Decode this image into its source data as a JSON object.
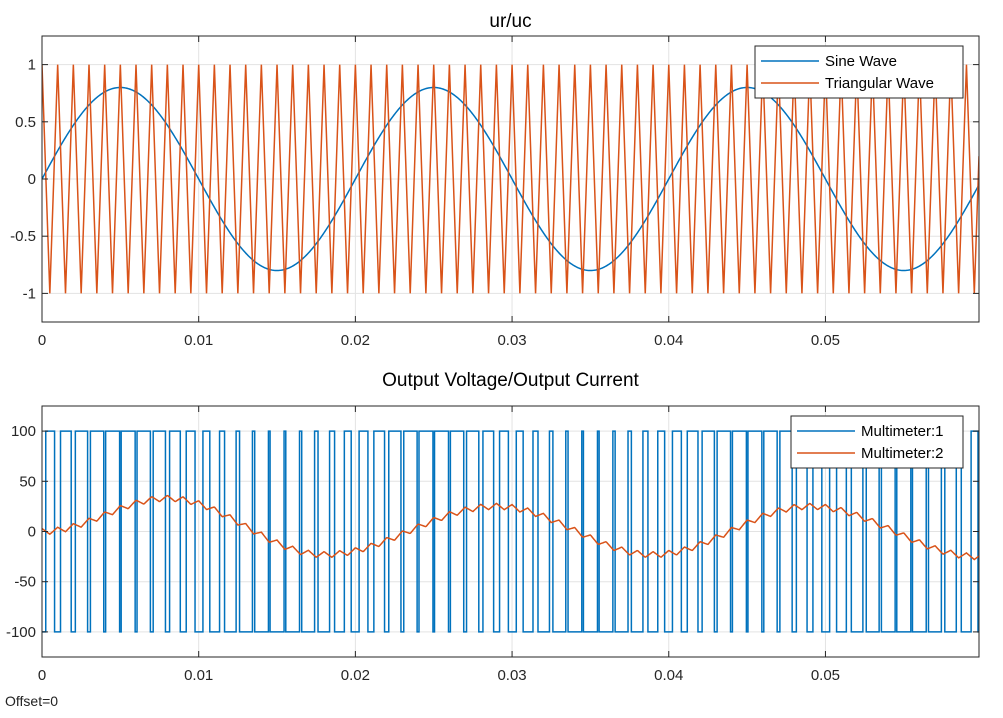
{
  "footer": {
    "offset": "Offset=0"
  },
  "colors": {
    "series1": "#0072BD",
    "series2": "#D95319",
    "grid": "#e3e3e3",
    "axis": "#262626"
  },
  "chart_data": [
    {
      "type": "line",
      "title": "ur/uc",
      "xlabel": "",
      "ylabel": "",
      "xlim": [
        0,
        0.0598
      ],
      "ylim": [
        -1.25,
        1.25
      ],
      "xticks": [
        0,
        0.01,
        0.02,
        0.03,
        0.04,
        0.05
      ],
      "xtick_labels": [
        "0",
        "0.01",
        "0.02",
        "0.03",
        "0.04",
        "0.05"
      ],
      "yticks": [
        1,
        0.5,
        0,
        -0.5,
        -1
      ],
      "ytick_labels": [
        "1",
        "0.5",
        "0",
        "-0.5",
        "-1"
      ],
      "grid": true,
      "legend_position": "top-right",
      "series": [
        {
          "name": "Sine Wave",
          "kind": "sine",
          "amplitude": 0.8,
          "frequency_hz": 50,
          "phase": 0,
          "color": "#0072BD"
        },
        {
          "name": "Triangular  Wave",
          "kind": "triangle",
          "amplitude": 1,
          "frequency_hz": 1000,
          "color": "#D95319"
        }
      ]
    },
    {
      "type": "line",
      "title": "Output Voltage/Output Current",
      "xlabel": "",
      "ylabel": "",
      "xlim": [
        0,
        0.0598
      ],
      "ylim": [
        -125,
        125
      ],
      "xticks": [
        0,
        0.01,
        0.02,
        0.03,
        0.04,
        0.05
      ],
      "xtick_labels": [
        "0",
        "0.01",
        "0.02",
        "0.03",
        "0.04",
        "0.05"
      ],
      "yticks": [
        100,
        50,
        0,
        -50,
        -100
      ],
      "ytick_labels": [
        "100",
        "50",
        "0",
        "-50",
        "-100"
      ],
      "grid": true,
      "legend_position": "top-right",
      "series": [
        {
          "name": "Multimeter:1",
          "kind": "spwm",
          "amplitude": 100,
          "carrier_hz": 1000,
          "modulation_index": 0.8,
          "reference_hz": 50,
          "color": "#0072BD"
        },
        {
          "name": "Multimeter:2",
          "kind": "current",
          "peak_points": [
            [
              0,
              0
            ],
            [
              0.008,
              33
            ],
            [
              0.018,
              -23
            ],
            [
              0.029,
              25
            ],
            [
              0.039,
              -23
            ],
            [
              0.049,
              25
            ],
            [
              0.0598,
              -25
            ]
          ],
          "ripple": 3,
          "color": "#D95319"
        }
      ]
    }
  ]
}
